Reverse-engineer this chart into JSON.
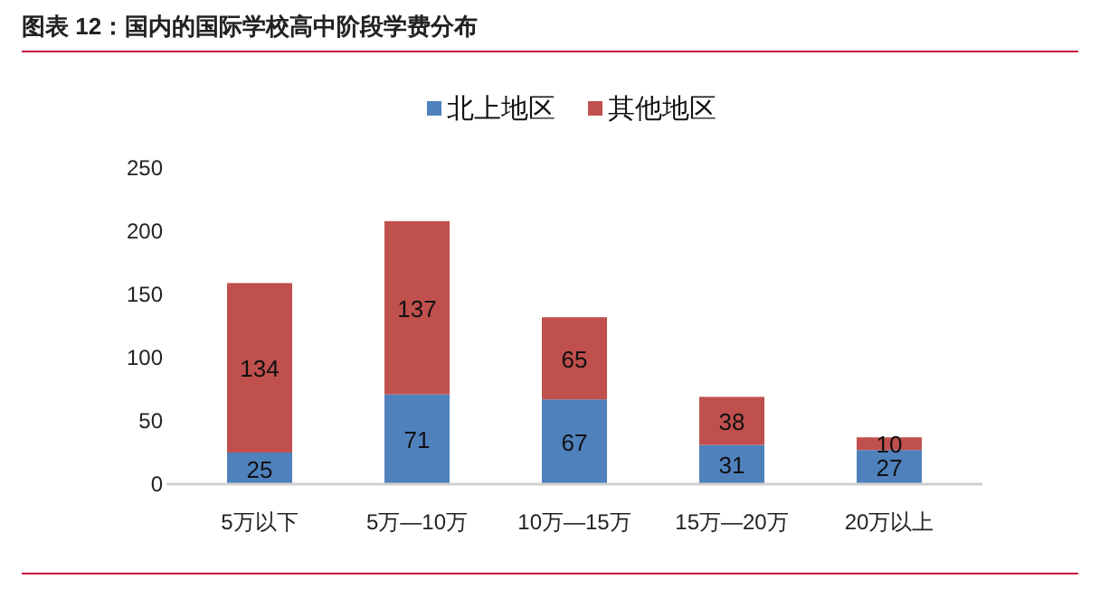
{
  "chart_data": {
    "type": "bar",
    "title": "图表 12：国内的国际学校高中阶段学费分布",
    "categories": [
      "5万以下",
      "5万—10万",
      "10万—15万",
      "15万—20万",
      "20万以上"
    ],
    "series": [
      {
        "name": "北上地区",
        "color": "#4f81bd",
        "values": [
          25,
          71,
          67,
          31,
          27
        ]
      },
      {
        "name": "其他地区",
        "color": "#c0504d",
        "values": [
          134,
          137,
          65,
          38,
          10
        ]
      }
    ],
    "stacked": true,
    "ylim": [
      0,
      250
    ],
    "yticks": [
      0,
      50,
      100,
      150,
      200,
      250
    ],
    "grid": false,
    "legend": "top",
    "data_labels": true
  }
}
